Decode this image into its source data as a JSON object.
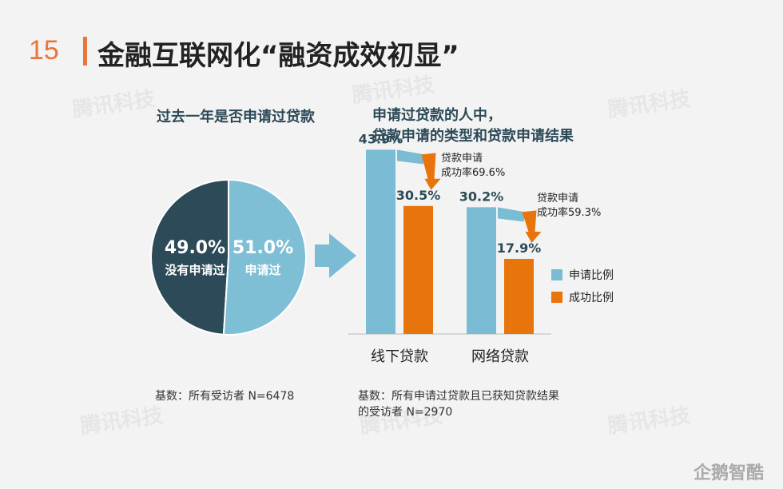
{
  "page_number": "15",
  "title": "金融互联网化“融资成效初显”",
  "watermark": "腾讯科技",
  "logo": "企鹅智酷",
  "colors": {
    "accent": "#e8753a",
    "pie_dark": "#2c4a57",
    "pie_light": "#7fbfd6",
    "bar_apply": "#79bcd4",
    "bar_success": "#e8740c"
  },
  "chart_data": [
    {
      "type": "pie",
      "title": "过去一年是否申请过贷款",
      "slices": [
        {
          "label": "没有申请过",
          "value": 49.0,
          "display": "49.0%"
        },
        {
          "label": "申请过",
          "value": 51.0,
          "display": "51.0%"
        }
      ],
      "note": "基数：所有受访者 N=6478"
    },
    {
      "type": "bar",
      "title_line1": "申请过贷款的人中，",
      "title_line2": "贷款申请的类型和贷款申请结果",
      "categories": [
        "线下贷款",
        "网络贷款"
      ],
      "series": [
        {
          "name": "申请比例",
          "values": [
            43.9,
            30.2
          ],
          "display": [
            "43.9%",
            "30.2%"
          ]
        },
        {
          "name": "成功比例",
          "values": [
            30.5,
            17.9
          ],
          "display": [
            "30.5%",
            "17.9%"
          ]
        }
      ],
      "annotations": [
        {
          "line1": "贷款申请",
          "line2": "成功率69.6%"
        },
        {
          "line1": "贷款申请",
          "line2": "成功率59.3%"
        }
      ],
      "ylim": [
        0,
        50
      ],
      "note_line1": "基数：所有申请过贷款且已获知贷款结果",
      "note_line2": "的受访者 N=2970"
    }
  ]
}
